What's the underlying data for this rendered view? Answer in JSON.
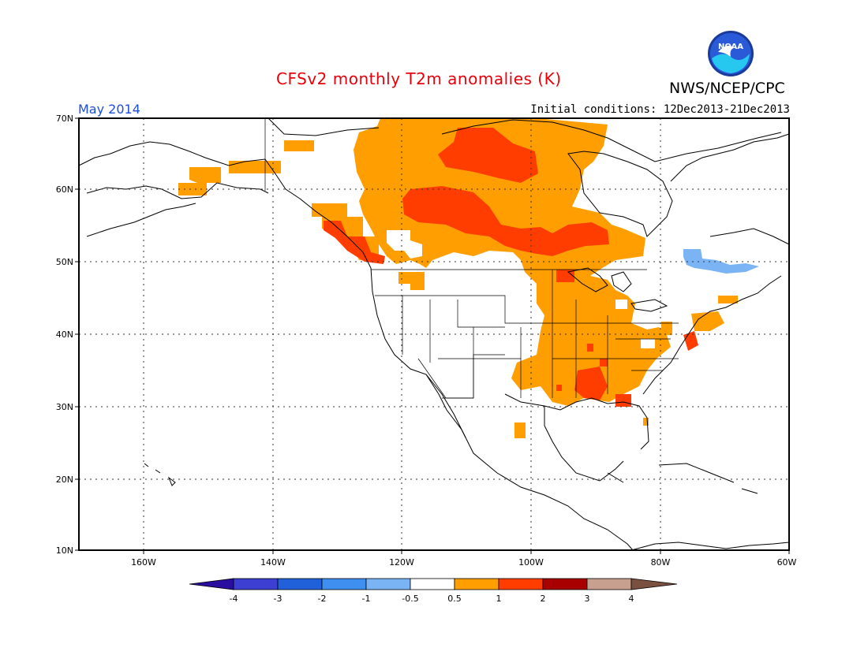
{
  "header": {
    "title": "CFSv2 monthly T2m anomalies (K)",
    "agency": "NWS/NCEP/CPC",
    "month": "May 2014",
    "initial_conditions": "Initial conditions: 12Dec2013-21Dec2013",
    "logo_text": "NOAA"
  },
  "axes": {
    "lat_labels": [
      "70N",
      "60N",
      "50N",
      "40N",
      "30N",
      "20N",
      "10N"
    ],
    "lon_labels": [
      "160W",
      "140W",
      "120W",
      "100W",
      "80W",
      "60W"
    ]
  },
  "colorbar": {
    "labels": [
      "-4",
      "-3",
      "-2",
      "-1",
      "-0.5",
      "0.5",
      "1",
      "2",
      "3",
      "4"
    ],
    "colors": {
      "below_-4": "#2a0ea0",
      "-4_-3": "#3c3fd2",
      "-3_-2": "#2060d8",
      "-2_-1": "#3f8ff0",
      "-1_-0.5": "#7ab4f5",
      "-0.5_0.5": "#ffffff",
      "0.5_1": "#ff9e00",
      "1_2": "#ff3d00",
      "2_3": "#a80000",
      "3_4": "#c8a090",
      "above_4": "#7a5040"
    }
  },
  "anomaly_colors": {
    "warm_0.5_1": "#ff9e00",
    "warm_1_2": "#ff3d00",
    "cool_-1_-0.5": "#7ab4f5"
  }
}
